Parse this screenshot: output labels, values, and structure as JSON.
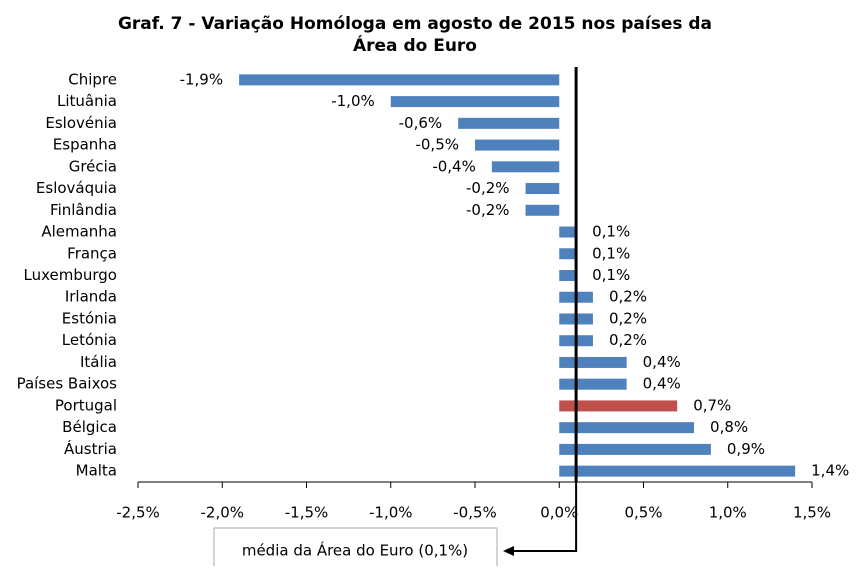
{
  "chart_data": {
    "type": "bar",
    "orientation": "horizontal",
    "title": [
      "Graf. 7 - Variação Homóloga em agosto de 2015 nos países da",
      "Área do Euro"
    ],
    "categories": [
      "Chipre",
      "Lituânia",
      "Eslovénia",
      "Espanha",
      "Grécia",
      "Eslováquia",
      "Finlândia",
      "Alemanha",
      "França",
      "Luxemburgo",
      "Irlanda",
      "Estónia",
      "Letónia",
      "Itália",
      "Países Baixos",
      "Portugal",
      "Bélgica",
      "Áustria",
      "Malta"
    ],
    "values": [
      -1.9,
      -1.0,
      -0.6,
      -0.5,
      -0.4,
      -0.2,
      -0.2,
      0.1,
      0.1,
      0.1,
      0.2,
      0.2,
      0.2,
      0.4,
      0.4,
      0.7,
      0.8,
      0.9,
      1.4
    ],
    "value_labels": [
      "-1,9%",
      "-1,0%",
      "-0,6%",
      "-0,5%",
      "-0,4%",
      "-0,2%",
      "-0,2%",
      "0,1%",
      "0,1%",
      "0,1%",
      "0,2%",
      "0,2%",
      "0,2%",
      "0,4%",
      "0,4%",
      "0,7%",
      "0,8%",
      "0,9%",
      "1,4%"
    ],
    "colors": [
      "#4f81bd",
      "#4f81bd",
      "#4f81bd",
      "#4f81bd",
      "#4f81bd",
      "#4f81bd",
      "#4f81bd",
      "#4f81bd",
      "#4f81bd",
      "#4f81bd",
      "#4f81bd",
      "#4f81bd",
      "#4f81bd",
      "#4f81bd",
      "#4f81bd",
      "#c0504d",
      "#4f81bd",
      "#4f81bd",
      "#4f81bd"
    ],
    "xlim": [
      -2.5,
      1.5
    ],
    "xticks": [
      {
        "value": -2.5,
        "label": "-2,5%"
      },
      {
        "value": -2.0,
        "label": "-2,0%"
      },
      {
        "value": -1.5,
        "label": "-1,5%"
      },
      {
        "value": -1.0,
        "label": "-1,0%"
      },
      {
        "value": -0.5,
        "label": "-0,5%"
      },
      {
        "value": 0.0,
        "label": "0,0%"
      },
      {
        "value": 0.5,
        "label": "0,5%"
      },
      {
        "value": 1.0,
        "label": "1,0%"
      },
      {
        "value": 1.5,
        "label": "1,5%"
      }
    ],
    "reference_line": {
      "value": 0.1,
      "label": "média da Área do Euro (0,1%)"
    }
  }
}
